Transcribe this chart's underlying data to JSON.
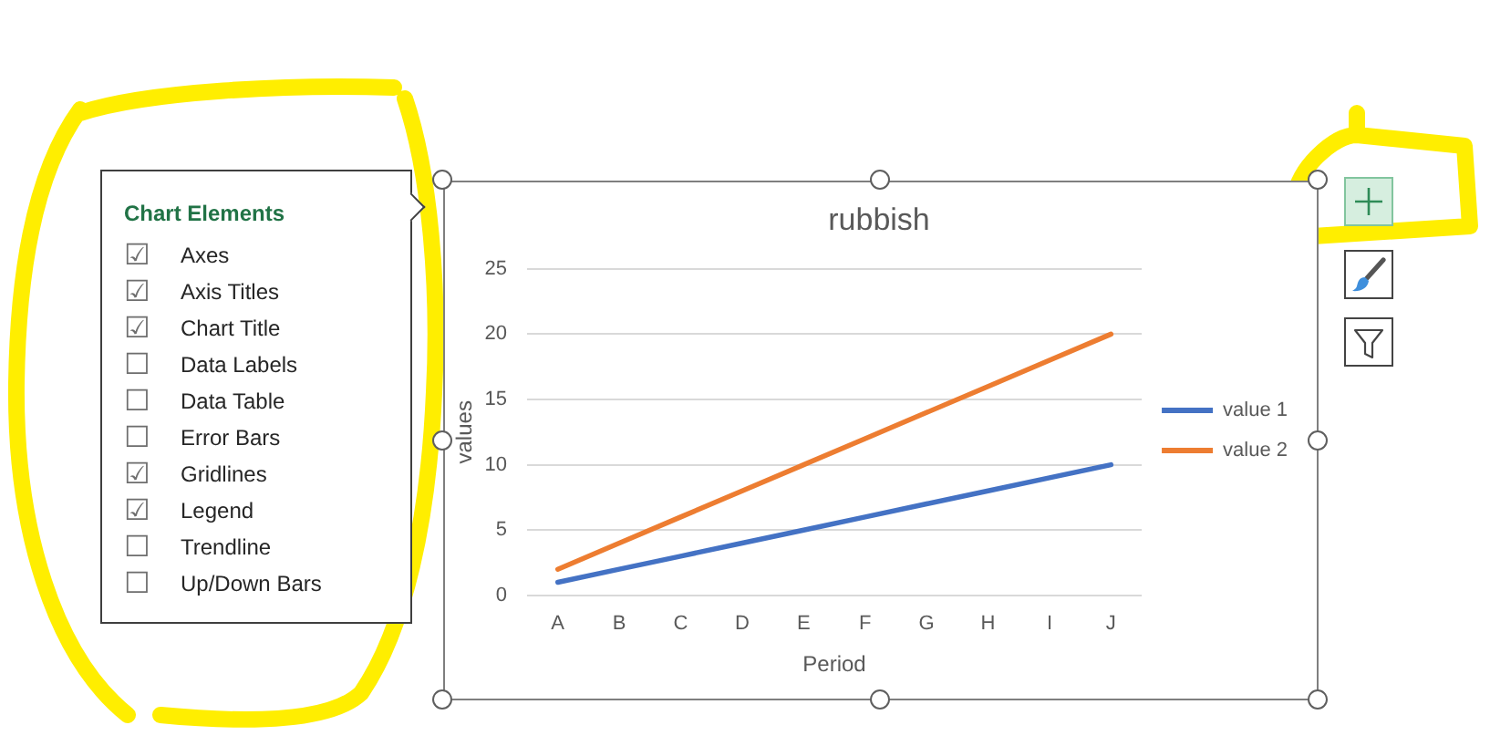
{
  "chart_data": [
    {
      "type": "line",
      "title": "rubbish",
      "xlabel": "Period",
      "ylabel": "values",
      "categories": [
        "A",
        "B",
        "C",
        "D",
        "E",
        "F",
        "G",
        "H",
        "I",
        "J"
      ],
      "series": [
        {
          "name": "value 1",
          "color": "#4472c4",
          "values": [
            1,
            2,
            3,
            4,
            5,
            6,
            7,
            8,
            9,
            10
          ]
        },
        {
          "name": "value 2",
          "color": "#ed7d31",
          "values": [
            2,
            4,
            6,
            8,
            10,
            12,
            14,
            16,
            18,
            20
          ]
        }
      ],
      "ylim": [
        0,
        25
      ],
      "yticks": [
        0,
        5,
        10,
        15,
        20,
        25
      ],
      "grid": "y",
      "legend": "right",
      "marker": "none"
    },
    {
      "type": "other",
      "title": "Chart Elements",
      "annotations": [
        "☑ Axes",
        "☑ Axis Titles",
        "☑ Chart Title",
        "☐ Data Labels",
        "☐ Data Table",
        "☐ Error Bars",
        "☑ Gridlines",
        "☑ Legend",
        "☐ Trendline",
        "☐ Up/Down Bars"
      ]
    }
  ]
}
